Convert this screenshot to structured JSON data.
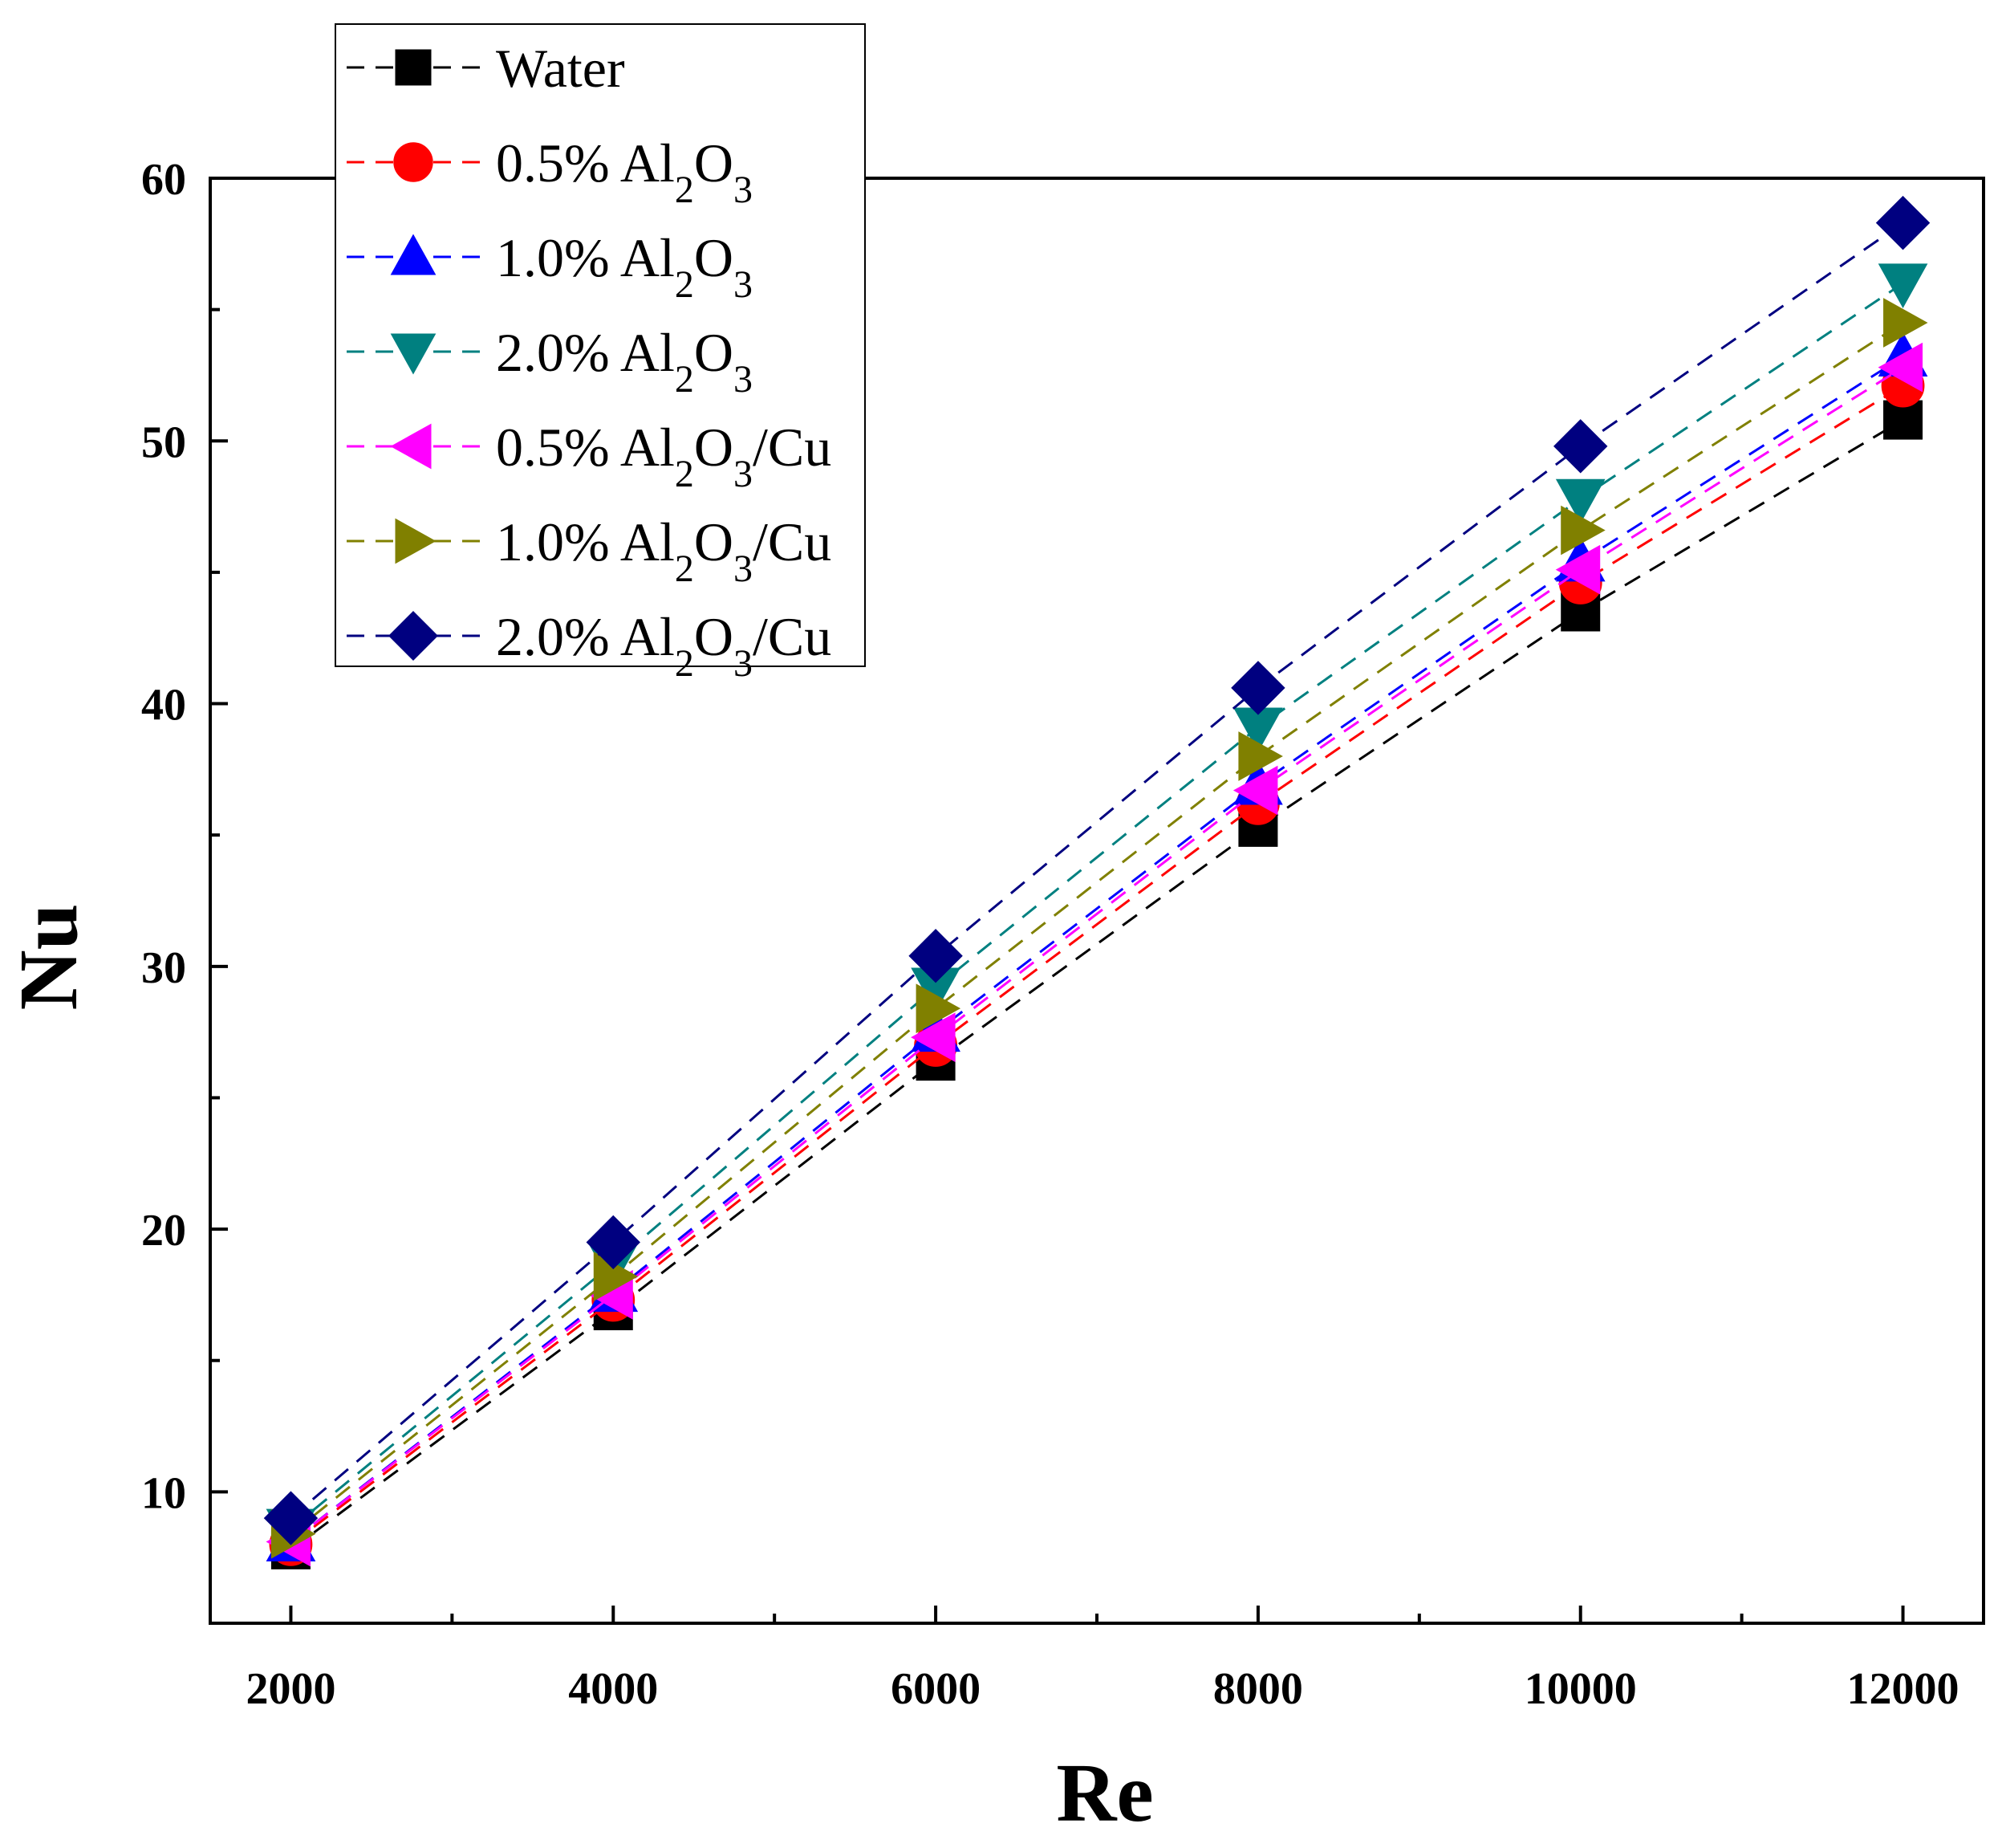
{
  "chart_data": {
    "type": "line",
    "title": "",
    "xlabel": "Re",
    "ylabel": "Nu",
    "x": [
      2000,
      4000,
      6000,
      8000,
      10000,
      12000
    ],
    "xlim": [
      1500,
      12500
    ],
    "ylim": [
      5,
      60
    ],
    "x_ticks": [
      2000,
      4000,
      6000,
      8000,
      10000,
      12000
    ],
    "y_ticks": [
      10,
      20,
      30,
      40,
      50,
      60
    ],
    "line_style": "dashed",
    "legend_position": "top-left",
    "series": [
      {
        "name": "Water",
        "formula": {
          "pre": "",
          "sub1": "",
          "mid": "",
          "sub2": "",
          "post": ""
        },
        "marker": "square",
        "color": "#000000",
        "values": [
          7.8,
          16.9,
          26.4,
          35.3,
          43.5,
          50.8
        ]
      },
      {
        "name": "0.5% Al2O3",
        "formula": {
          "pre": "0.5% Al",
          "sub1": "2",
          "mid": "O",
          "sub2": "3",
          "post": ""
        },
        "marker": "circle",
        "color": "#ff0000",
        "values": [
          8.0,
          17.3,
          27.0,
          36.2,
          44.6,
          52.1
        ]
      },
      {
        "name": "1.0% Al2O3",
        "formula": {
          "pre": "1.0% Al",
          "sub1": "2",
          "mid": "O",
          "sub2": "3",
          "post": ""
        },
        "marker": "triangle-up",
        "color": "#0000ff",
        "values": [
          8.1,
          17.6,
          27.5,
          36.9,
          45.4,
          53.2
        ]
      },
      {
        "name": "2.0% Al2O3",
        "formula": {
          "pre": "2.0% Al",
          "sub1": "2",
          "mid": "O",
          "sub2": "3",
          "post": ""
        },
        "marker": "triangle-down",
        "color": "#008080",
        "values": [
          8.6,
          18.7,
          29.2,
          39.1,
          47.8,
          56.0
        ]
      },
      {
        "name": "0.5% Al2O3/Cu",
        "formula": {
          "pre": "0.5% Al",
          "sub1": "2",
          "mid": "O",
          "sub2": "3",
          "post": "/Cu"
        },
        "marker": "triangle-left",
        "color": "#ff00ff",
        "values": [
          8.1,
          17.5,
          27.3,
          36.7,
          45.1,
          52.8
        ]
      },
      {
        "name": "1.0% Al2O3/Cu",
        "formula": {
          "pre": "1.0% Al",
          "sub1": "2",
          "mid": "O",
          "sub2": "3",
          "post": "/Cu"
        },
        "marker": "triangle-right",
        "color": "#808000",
        "values": [
          8.4,
          18.2,
          28.4,
          38.0,
          46.6,
          54.5
        ]
      },
      {
        "name": "2.0% Al2O3/Cu",
        "formula": {
          "pre": "2.0% Al",
          "sub1": "2",
          "mid": "O",
          "sub2": "3",
          "post": "/Cu"
        },
        "marker": "diamond",
        "color": "#000080",
        "values": [
          9.0,
          19.5,
          30.4,
          40.6,
          49.8,
          58.3
        ]
      }
    ]
  }
}
